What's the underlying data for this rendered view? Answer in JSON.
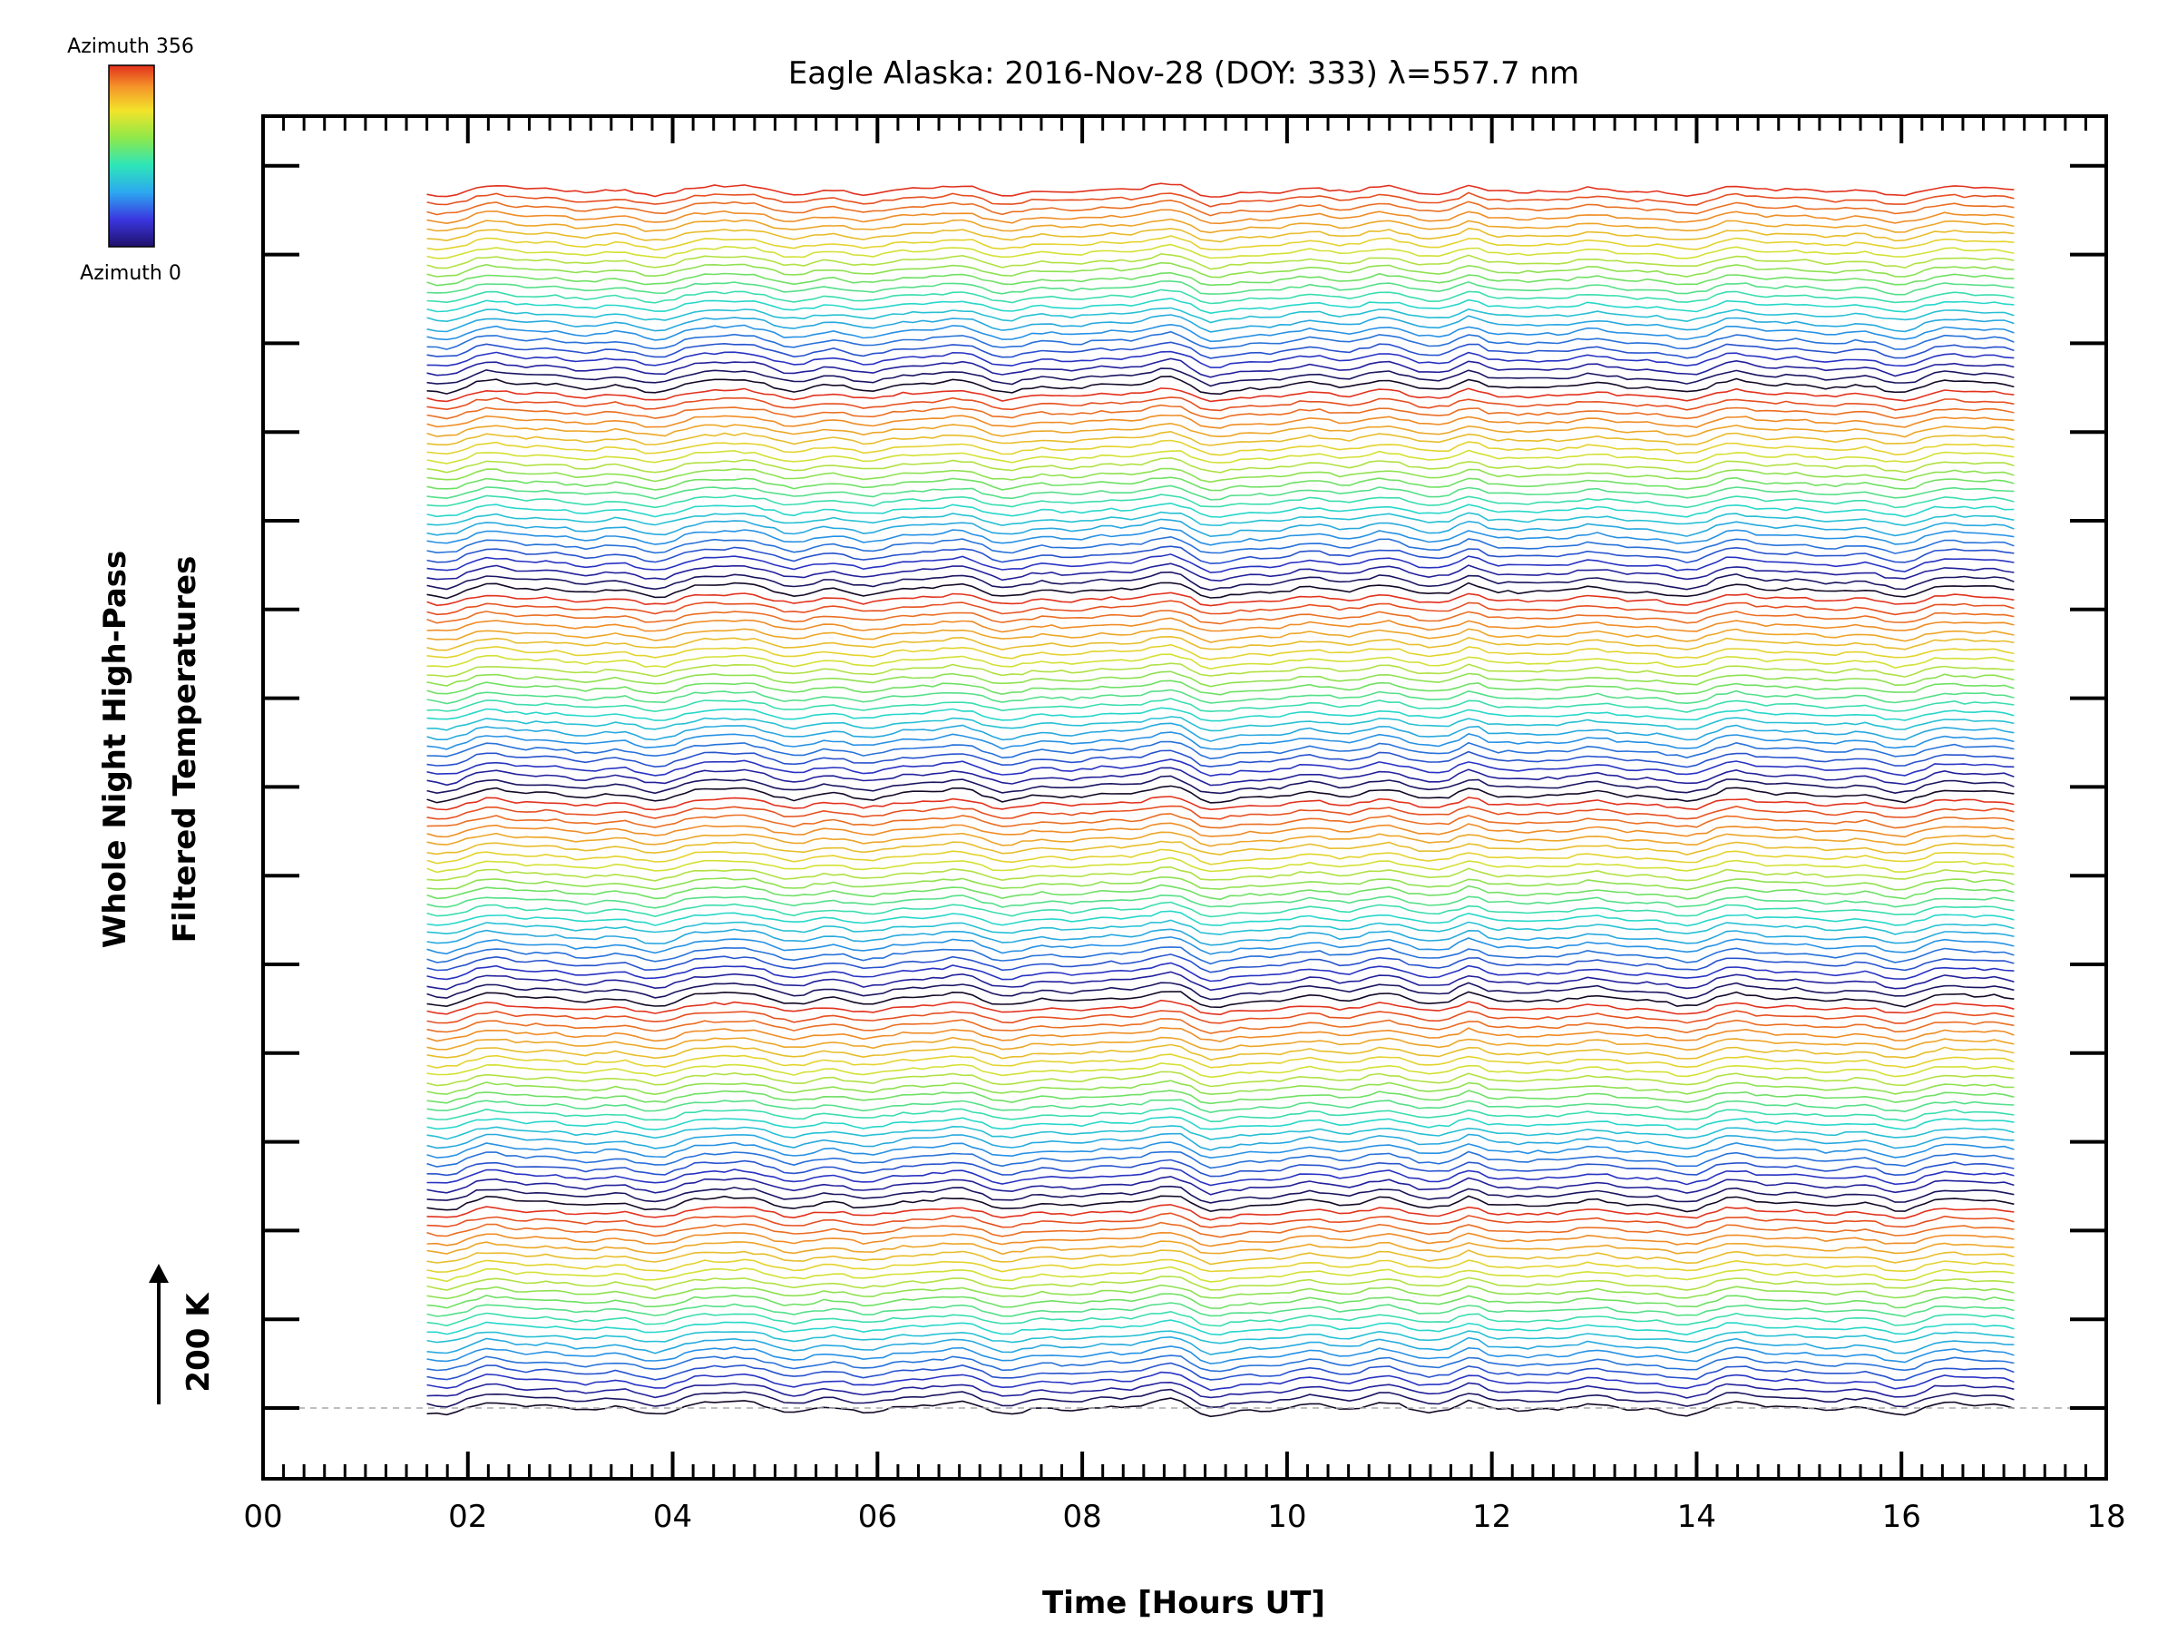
{
  "chart_data": {
    "type": "line",
    "title": "Eagle Alaska: 2016-Nov-28 (DOY: 333) λ=557.7 nm",
    "xlabel": "Time [Hours UT]",
    "ylabel_line1": "Whole Night High-Pass",
    "ylabel_line2": "Filtered Temperatures",
    "xlim": [
      0,
      18
    ],
    "x_ticks": [
      "00",
      "02",
      "04",
      "06",
      "08",
      "10",
      "12",
      "14",
      "16",
      "18"
    ],
    "x_tick_values": [
      0,
      2,
      4,
      6,
      8,
      10,
      12,
      14,
      16,
      18
    ],
    "y_axis_labels_shown": false,
    "scale_bar_label": "200 K",
    "colorbar": {
      "top_label": "Azimuth 356",
      "bottom_label": "Azimuth 0",
      "colormap": "rainbow"
    },
    "series_count": 138,
    "time_start": 1.6,
    "time_end": 17.1,
    "azimuth_cycle": 23,
    "event": {
      "description": "strong common perturbation across all azimuths",
      "time": 11.8
    },
    "baseline_dashed": true,
    "colors": {
      "background": "#ffffff",
      "axes": "#000000",
      "baseline": "#aaaaaa"
    }
  }
}
